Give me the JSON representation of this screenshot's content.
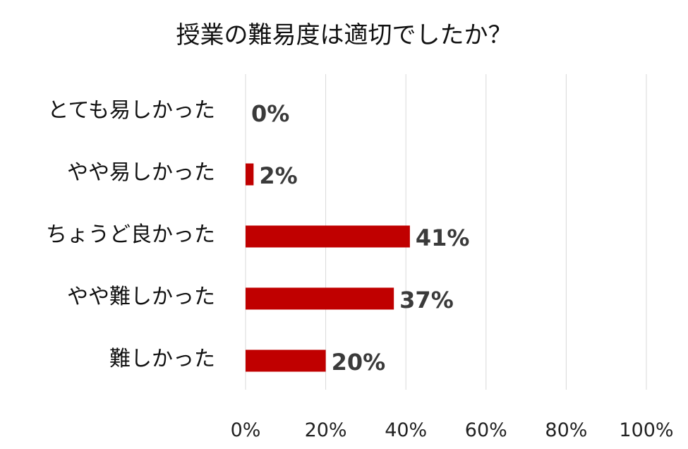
{
  "chart_data": {
    "type": "bar",
    "orientation": "horizontal",
    "title": "授業の難易度は適切でしたか？",
    "categories": [
      "とても易しかった",
      "やや易しかった",
      "ちょうど良かった",
      "やや難しかった",
      "難しかった"
    ],
    "values": [
      0,
      2,
      41,
      37,
      20
    ],
    "data_labels": [
      "0%",
      "2%",
      "41%",
      "37%",
      "20%"
    ],
    "x_ticks": [
      "0%",
      "20%",
      "40%",
      "60%",
      "80%",
      "100%"
    ],
    "xlim": [
      0,
      100
    ],
    "grid": true,
    "bar_color": "#C00000"
  }
}
